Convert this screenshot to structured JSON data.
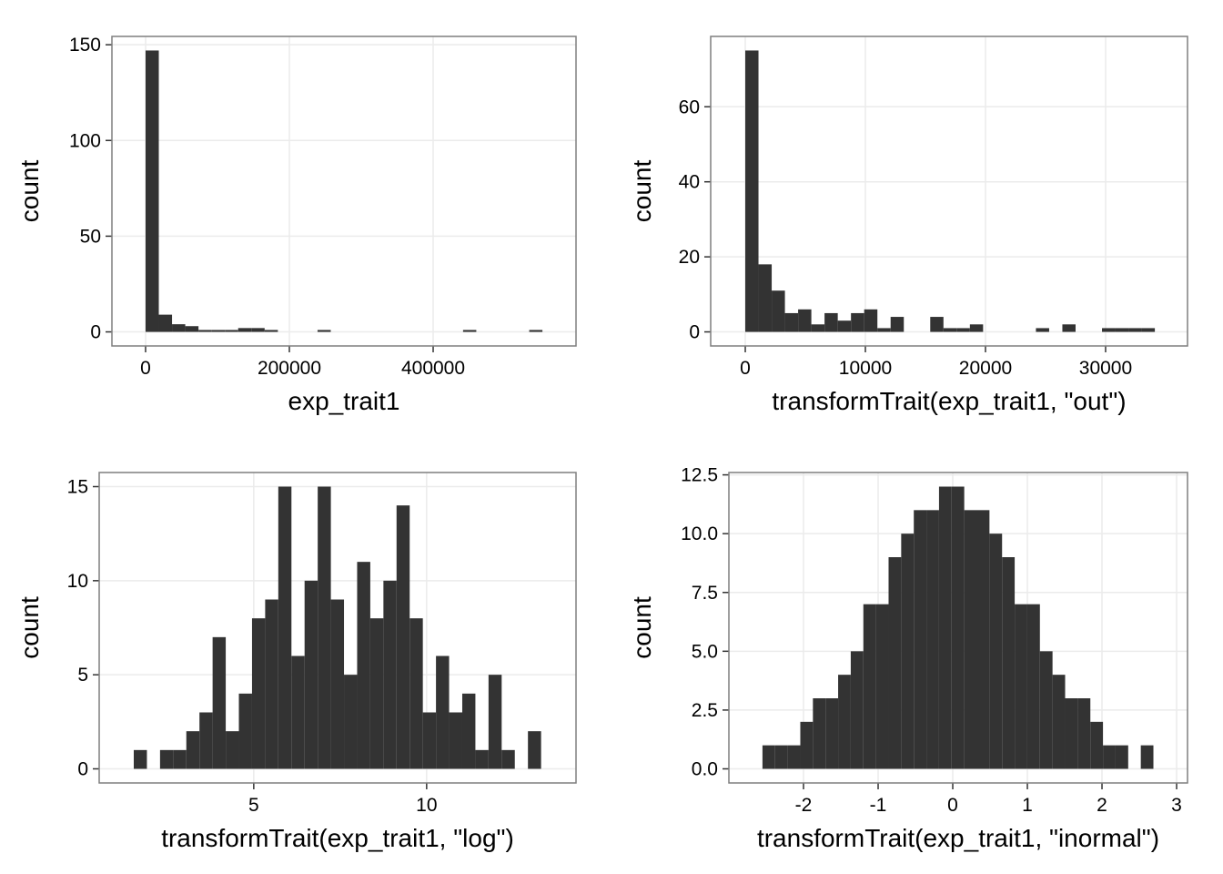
{
  "chart_data": [
    {
      "type": "histogram",
      "xlabel": "exp_trait1",
      "ylabel": "count",
      "color": "#333333",
      "grid": true,
      "bins": [
        0,
        18400,
        36800,
        55200,
        73600,
        92000,
        110400,
        128800,
        147200,
        165600,
        184000,
        202400,
        220800,
        239200,
        257600,
        276000,
        294400,
        312800,
        331200,
        349600,
        368000,
        386400,
        404800,
        423200,
        441600,
        460000,
        478400,
        496800,
        515200,
        533600,
        552000
      ],
      "values": [
        147,
        9,
        4,
        3,
        1,
        1,
        1,
        2,
        2,
        1,
        0,
        0,
        0,
        1,
        0,
        0,
        0,
        0,
        0,
        0,
        0,
        0,
        0,
        0,
        1,
        0,
        0,
        0,
        0,
        1
      ],
      "xlim": [
        -46800,
        598700
      ],
      "ylim": [
        -7.35,
        154.35
      ],
      "xticks": [
        0,
        200000,
        400000
      ],
      "yticks": [
        0,
        50,
        100,
        150
      ]
    },
    {
      "type": "histogram",
      "xlabel": "transformTrait(exp_trait1, \"out\")",
      "ylabel": "count",
      "color": "#333333",
      "grid": true,
      "bins": [
        0,
        1100,
        2200,
        3300,
        4400,
        5500,
        6600,
        7700,
        8800,
        9900,
        11000,
        12100,
        13200,
        14300,
        15400,
        16500,
        17600,
        18700,
        19800,
        20900,
        22000,
        23100,
        24200,
        25300,
        26400,
        27500,
        28600,
        29700,
        30800,
        31900,
        33000,
        34100
      ],
      "values": [
        75,
        18,
        11,
        5,
        6,
        2,
        5,
        3,
        5,
        6,
        1,
        4,
        0,
        0,
        4,
        1,
        1,
        2,
        0,
        0,
        0,
        0,
        1,
        0,
        2,
        0,
        0,
        1,
        1,
        1,
        1
      ],
      "xlim": [
        -2880,
        36820
      ],
      "ylim": [
        -3.75,
        78.75
      ],
      "xticks": [
        0,
        10000,
        20000,
        30000
      ],
      "yticks": [
        0,
        20,
        40,
        60
      ]
    },
    {
      "type": "histogram",
      "xlabel": "transformTrait(exp_trait1, \"log\")",
      "ylabel": "count",
      "color": "#333333",
      "grid": true,
      "bins": [
        1.53,
        1.91,
        2.29,
        2.67,
        3.05,
        3.43,
        3.81,
        4.19,
        4.57,
        4.95,
        5.33,
        5.71,
        6.09,
        6.47,
        6.85,
        7.23,
        7.61,
        7.99,
        8.37,
        8.75,
        9.13,
        9.51,
        9.89,
        10.27,
        10.65,
        11.03,
        11.41,
        11.79,
        12.17,
        12.55,
        12.93,
        13.31
      ],
      "values": [
        1,
        0,
        1,
        1,
        2,
        3,
        7,
        2,
        4,
        8,
        9,
        15,
        6,
        10,
        15,
        9,
        5,
        11,
        8,
        10,
        14,
        8,
        3,
        6,
        3,
        4,
        1,
        5,
        1,
        0,
        2
      ],
      "xlim": [
        0.53,
        14.32
      ],
      "ylim": [
        -0.75,
        15.75
      ],
      "xticks": [
        5,
        10
      ],
      "yticks": [
        0,
        5,
        10,
        15
      ]
    },
    {
      "type": "histogram",
      "xlabel": "transformTrait(exp_trait1, \"inormal\")",
      "ylabel": "count",
      "color": "#333333",
      "grid": true,
      "bins": [
        -2.55,
        -2.381,
        -2.212,
        -2.043,
        -1.874,
        -1.705,
        -1.536,
        -1.367,
        -1.198,
        -1.029,
        -0.86,
        -0.691,
        -0.522,
        -0.353,
        -0.184,
        -0.015,
        0.154,
        0.323,
        0.492,
        0.661,
        0.83,
        0.999,
        1.168,
        1.337,
        1.506,
        1.675,
        1.844,
        2.013,
        2.182,
        2.351,
        2.52,
        2.689
      ],
      "values": [
        1,
        1,
        1,
        2,
        3,
        3,
        4,
        5,
        7,
        7,
        9,
        10,
        11,
        11,
        12,
        12,
        11,
        11,
        10,
        9,
        7,
        7,
        5,
        4,
        3,
        3,
        2,
        1,
        1,
        0,
        1
      ],
      "xlim": [
        -3.0,
        3.146
      ],
      "ylim": [
        -0.6,
        12.6
      ],
      "xticks": [
        -2,
        -1,
        0,
        1,
        2,
        3
      ],
      "yticks": [
        {
          "value": 0,
          "label": "0.0"
        },
        {
          "value": 2.5,
          "label": "2.5"
        },
        {
          "value": 5,
          "label": "5.0"
        },
        {
          "value": 7.5,
          "label": "7.5"
        },
        {
          "value": 10,
          "label": "10.0"
        },
        {
          "value": 12.5,
          "label": "12.5"
        }
      ]
    }
  ]
}
